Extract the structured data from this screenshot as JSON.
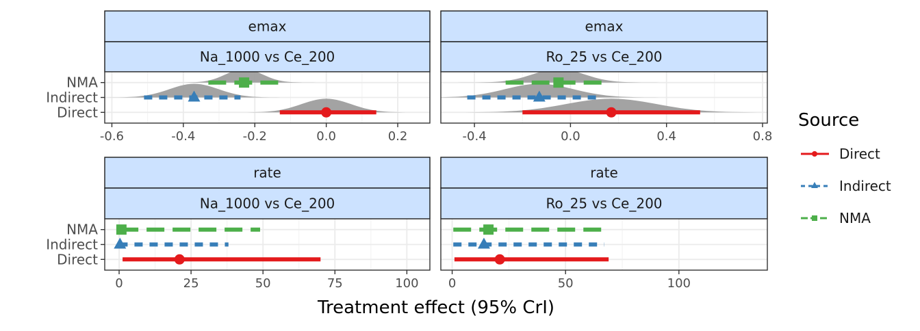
{
  "chart_data": {
    "type": "forest",
    "xlabel": "Treatment effect (95% CrI)",
    "legend": {
      "title": "Source",
      "placement": "right",
      "entries": [
        {
          "label": "Direct",
          "color": "#e41a1c",
          "shape": "circle",
          "linetype": "solid"
        },
        {
          "label": "Indirect",
          "color": "#377eb8",
          "shape": "triangle",
          "linetype": "dotted"
        },
        {
          "label": "NMA",
          "color": "#4daf4a",
          "shape": "square",
          "linetype": "dashed"
        }
      ]
    },
    "grid": true,
    "density_color": "#9e9e9e",
    "strip_fill": "#cce2ff",
    "panels": [
      {
        "strip": [
          "emax",
          "Na_1000 vs Ce_200"
        ],
        "xlim": [
          -0.62,
          0.29
        ],
        "xticks": [
          -0.6,
          -0.4,
          -0.2,
          0.0,
          0.2
        ],
        "xtick_labels": [
          "-0.6",
          "-0.4",
          "-0.2",
          "0.0",
          "0.2"
        ],
        "categories": [
          "NMA",
          "Indirect",
          "Direct"
        ],
        "estimates": [
          {
            "source": "NMA",
            "mean": -0.23,
            "lower": -0.33,
            "upper": -0.13,
            "density": true
          },
          {
            "source": "Indirect",
            "mean": -0.37,
            "lower": -0.51,
            "upper": -0.24,
            "density": true
          },
          {
            "source": "Direct",
            "mean": 0.0,
            "lower": -0.13,
            "upper": 0.14,
            "density": true
          }
        ]
      },
      {
        "strip": [
          "emax",
          "Ro_25 vs Ce_200"
        ],
        "xlim": [
          -0.54,
          0.82
        ],
        "xticks": [
          -0.4,
          0.0,
          0.4,
          0.8
        ],
        "xtick_labels": [
          "-0.4",
          "0.0",
          "0.4",
          "0.8"
        ],
        "categories": [
          "NMA",
          "Indirect",
          "Direct"
        ],
        "estimates": [
          {
            "source": "NMA",
            "mean": -0.05,
            "lower": -0.27,
            "upper": 0.15,
            "density": true
          },
          {
            "source": "Indirect",
            "mean": -0.13,
            "lower": -0.43,
            "upper": 0.13,
            "density": true
          },
          {
            "source": "Direct",
            "mean": 0.17,
            "lower": -0.2,
            "upper": 0.54,
            "density": true
          }
        ]
      },
      {
        "strip": [
          "rate",
          "Na_1000 vs Ce_200"
        ],
        "xlim": [
          -5,
          108
        ],
        "xticks": [
          0,
          25,
          50,
          75,
          100
        ],
        "xtick_labels": [
          "0",
          "25",
          "50",
          "75",
          "100"
        ],
        "categories": [
          "NMA",
          "Indirect",
          "Direct"
        ],
        "estimates": [
          {
            "source": "NMA",
            "mean": 0.8,
            "lower": 0.5,
            "upper": 49,
            "density": false
          },
          {
            "source": "Indirect",
            "mean": 0.3,
            "lower": 0.1,
            "upper": 38,
            "density": false
          },
          {
            "source": "Direct",
            "mean": 21,
            "lower": 1.2,
            "upper": 70,
            "density": false
          }
        ]
      },
      {
        "strip": [
          "rate",
          "Ro_25 vs Ce_200"
        ],
        "xlim": [
          -5,
          139
        ],
        "xticks": [
          0,
          50,
          100
        ],
        "xtick_labels": [
          "0",
          "50",
          "100"
        ],
        "categories": [
          "NMA",
          "Indirect",
          "Direct"
        ],
        "estimates": [
          {
            "source": "NMA",
            "mean": 16,
            "lower": 0.5,
            "upper": 69,
            "density": false
          },
          {
            "source": "Indirect",
            "mean": 14,
            "lower": 0.5,
            "upper": 67,
            "density": false
          },
          {
            "source": "Direct",
            "mean": 21,
            "lower": 1.0,
            "upper": 69,
            "density": false
          }
        ]
      }
    ]
  }
}
